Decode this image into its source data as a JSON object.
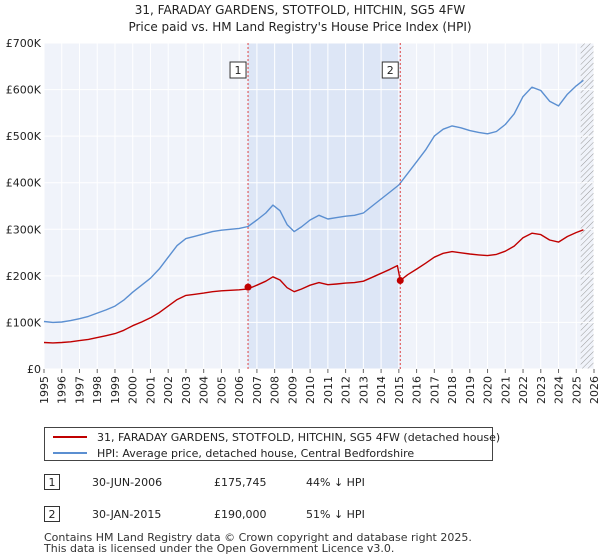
{
  "chart_data": {
    "type": "line",
    "title": "31, FARADAY GARDENS, STOTFOLD, HITCHIN, SG5 4FW",
    "subtitle": "Price paid vs. HM Land Registry's House Price Index (HPI)",
    "xlabel": "",
    "ylabel": "",
    "xlim": [
      1995,
      2026
    ],
    "ylim": [
      0,
      700000
    ],
    "x_ticks": [
      "1995",
      "1996",
      "1997",
      "1998",
      "1999",
      "2000",
      "2001",
      "2002",
      "2003",
      "2004",
      "2005",
      "2006",
      "2007",
      "2008",
      "2009",
      "2010",
      "2011",
      "2012",
      "2013",
      "2014",
      "2015",
      "2016",
      "2017",
      "2018",
      "2019",
      "2020",
      "2021",
      "2022",
      "2023",
      "2024",
      "2025",
      "2026"
    ],
    "y_ticks": [
      {
        "value": 0,
        "label": "£0"
      },
      {
        "value": 100000,
        "label": "£100K"
      },
      {
        "value": 200000,
        "label": "£200K"
      },
      {
        "value": 300000,
        "label": "£300K"
      },
      {
        "value": 400000,
        "label": "£400K"
      },
      {
        "value": 500000,
        "label": "£500K"
      },
      {
        "value": 600000,
        "label": "£600K"
      },
      {
        "value": 700000,
        "label": "£700K"
      }
    ],
    "grid": true,
    "shaded_range": [
      2006.5,
      2015.08
    ],
    "future_hatch_from": 2025.25,
    "series": [
      {
        "name": "HPI: Average price, detached house, Central Bedfordshire",
        "color": "#5b8fd1",
        "x": [
          1995,
          1995.5,
          1996,
          1996.5,
          1997,
          1997.5,
          1998,
          1998.5,
          1999,
          1999.5,
          2000,
          2000.5,
          2001,
          2001.5,
          2002,
          2002.5,
          2003,
          2003.5,
          2004,
          2004.5,
          2005,
          2005.5,
          2006,
          2006.5,
          2007,
          2007.5,
          2007.9,
          2008.3,
          2008.7,
          2009.1,
          2009.5,
          2010,
          2010.5,
          2011,
          2011.5,
          2012,
          2012.5,
          2013,
          2013.5,
          2014,
          2014.5,
          2015,
          2015.5,
          2016,
          2016.5,
          2017,
          2017.5,
          2018,
          2018.5,
          2019,
          2019.5,
          2020,
          2020.5,
          2021,
          2021.5,
          2022,
          2022.5,
          2023,
          2023.5,
          2024,
          2024.5,
          2025,
          2025.4
        ],
        "values": [
          102000,
          100000,
          101000,
          104000,
          108000,
          113000,
          120000,
          127000,
          135000,
          148000,
          165000,
          180000,
          195000,
          215000,
          240000,
          265000,
          280000,
          285000,
          290000,
          295000,
          298000,
          300000,
          302000,
          306000,
          320000,
          335000,
          352000,
          340000,
          310000,
          295000,
          305000,
          320000,
          330000,
          322000,
          325000,
          328000,
          330000,
          335000,
          350000,
          365000,
          380000,
          395000,
          420000,
          445000,
          470000,
          500000,
          515000,
          522000,
          518000,
          512000,
          508000,
          505000,
          510000,
          525000,
          548000,
          585000,
          605000,
          598000,
          575000,
          565000,
          590000,
          608000,
          620000
        ]
      },
      {
        "name": "31, FARADAY GARDENS, STOTFOLD, HITCHIN, SG5 4FW (detached house)",
        "color": "#c00000",
        "x": [
          1995,
          1995.5,
          1996,
          1996.5,
          1997,
          1997.5,
          1998,
          1998.5,
          1999,
          1999.5,
          2000,
          2000.5,
          2001,
          2001.5,
          2002,
          2002.5,
          2003,
          2003.5,
          2004,
          2004.5,
          2005,
          2005.5,
          2006,
          2006.5,
          2007,
          2007.5,
          2007.9,
          2008.3,
          2008.7,
          2009.1,
          2009.5,
          2010,
          2010.5,
          2011,
          2011.5,
          2012,
          2012.5,
          2013,
          2013.5,
          2014,
          2014.5,
          2014.92,
          2015.08,
          2015.5,
          2016,
          2016.5,
          2017,
          2017.5,
          2018,
          2018.5,
          2019,
          2019.5,
          2020,
          2020.5,
          2021,
          2021.5,
          2022,
          2022.5,
          2023,
          2023.5,
          2024,
          2024.5,
          2025,
          2025.4
        ],
        "values": [
          57000,
          56000,
          57000,
          58500,
          61000,
          63500,
          67500,
          71500,
          76000,
          83000,
          93000,
          101000,
          110000,
          121000,
          135000,
          149000,
          158000,
          160500,
          163000,
          166000,
          168000,
          169000,
          170000,
          172000,
          180000,
          188500,
          198000,
          191000,
          174500,
          166000,
          171500,
          180000,
          185500,
          181000,
          182500,
          184500,
          185500,
          188500,
          197000,
          205500,
          214000,
          222000,
          190000,
          202500,
          214500,
          227000,
          240000,
          248500,
          252000,
          249500,
          247000,
          245000,
          243500,
          246000,
          253000,
          264000,
          282000,
          291500,
          288500,
          277000,
          272500,
          284500,
          293000,
          299000
        ]
      }
    ],
    "sales": [
      {
        "id": "1",
        "x": 2006.5,
        "value": 175745,
        "date": "30-JUN-2006",
        "price": "£175,745",
        "hpi": "44% ↓ HPI"
      },
      {
        "id": "2",
        "x": 2015.08,
        "value": 190000,
        "date": "30-JAN-2015",
        "price": "£190,000",
        "hpi": "51% ↓ HPI"
      }
    ]
  },
  "legend": {
    "property_label": "31, FARADAY GARDENS, STOTFOLD, HITCHIN, SG5 4FW (detached house)",
    "hpi_label": "HPI: Average price, detached house, Central Bedfordshire"
  },
  "footer": {
    "line1": "Contains HM Land Registry data © Crown copyright and database right 2025.",
    "line2": "This data is licensed under the Open Government Licence v3.0."
  }
}
